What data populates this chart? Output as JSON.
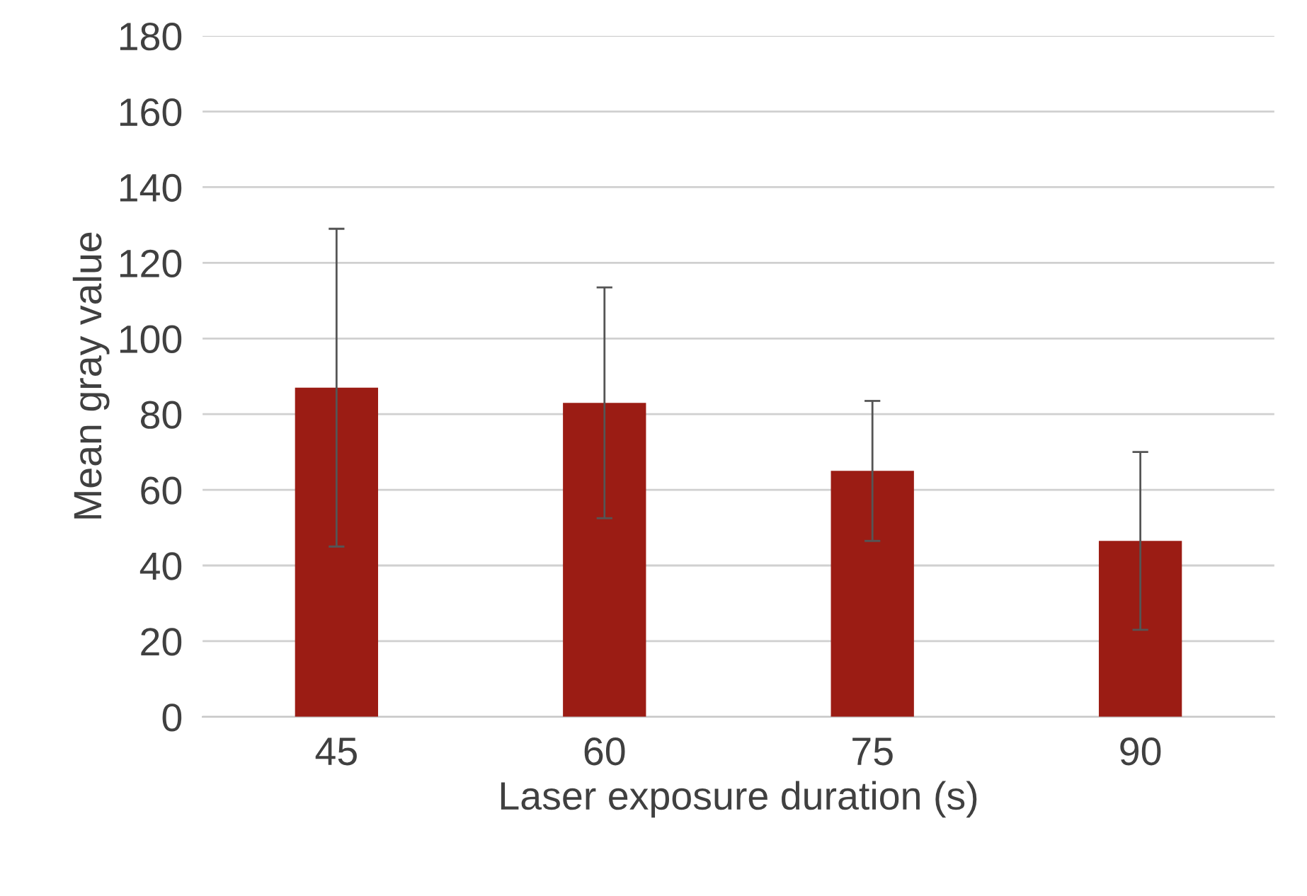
{
  "chart_data": {
    "type": "bar",
    "xlabel": "Laser exposure duration (s)",
    "ylabel": "Mean gray value",
    "categories": [
      "45",
      "60",
      "75",
      "90"
    ],
    "series": [
      {
        "color": "#9b1c14",
        "values": [
          87,
          83,
          65,
          46.5
        ],
        "errors": [
          42,
          30.5,
          18.5,
          23.5
        ]
      }
    ],
    "ylim": [
      0,
      180
    ],
    "yticks": [
      0,
      20,
      40,
      60,
      80,
      100,
      120,
      140,
      160,
      180
    ],
    "grid": "y",
    "legend": false
  }
}
